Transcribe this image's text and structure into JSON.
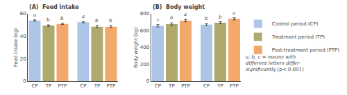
{
  "chart_data": [
    {
      "type": "bar",
      "title": "(A)  Feed intake",
      "y_label": "Feed intake (kg)",
      "categories": [
        "CP",
        "TP",
        "PTP",
        "CP",
        "TP",
        "PTP"
      ],
      "series": [
        {
          "name": "Control period (CP)",
          "color": "#adc6e8",
          "values": [
            54.0,
            null,
            null,
            52.5,
            null,
            null
          ],
          "errors": [
            0.6,
            null,
            null,
            0.6,
            null,
            null
          ]
        },
        {
          "name": "Treatment period (TP)",
          "color": "#b0a96e",
          "values": [
            null,
            49.5,
            null,
            null,
            48.5,
            null
          ],
          "errors": [
            null,
            0.6,
            null,
            null,
            0.9,
            null
          ]
        },
        {
          "name": "Post-treatment period (PTP)",
          "color": "#f2a86b",
          "values": [
            null,
            null,
            51.0,
            null,
            null,
            48.5
          ],
          "errors": [
            null,
            null,
            0.6,
            null,
            null,
            0.9
          ]
        }
      ],
      "annotations": [
        "a",
        "b",
        "b",
        "a",
        "b",
        "b"
      ],
      "ylim": [
        0,
        60
      ],
      "yticks": [
        0,
        20,
        40,
        60
      ],
      "grid": false,
      "legend": "right"
    },
    {
      "type": "bar",
      "title": "(B)  Body weight",
      "y_label": "Body weight (kg)",
      "categories": [
        "CP",
        "TP",
        "PTP",
        "CP",
        "TP",
        "PTP"
      ],
      "series": [
        {
          "name": "Control period (CP)",
          "color": "#adc6e8",
          "values": [
            658,
            null,
            null,
            672,
            null,
            null
          ],
          "errors": [
            14,
            null,
            null,
            11,
            null,
            null
          ]
        },
        {
          "name": "Treatment period (TP)",
          "color": "#b0a96e",
          "values": [
            null,
            678,
            null,
            null,
            694,
            null
          ],
          "errors": [
            null,
            14,
            null,
            null,
            12,
            null
          ]
        },
        {
          "name": "Post-treatment period (PTP)",
          "color": "#f2a86b",
          "values": [
            null,
            null,
            718,
            null,
            null,
            740
          ],
          "errors": [
            null,
            null,
            13,
            null,
            null,
            13
          ]
        }
      ],
      "annotations": [
        "c",
        "b",
        "a",
        "b",
        "b",
        "a"
      ],
      "ylim": [
        0,
        800
      ],
      "yticks": [
        0,
        200,
        400,
        600,
        800
      ],
      "grid": false,
      "legend": "right",
      "caption": "a, b, c = means with\ndifferent letters differ\nsignificantly (p< 0.001)"
    }
  ]
}
